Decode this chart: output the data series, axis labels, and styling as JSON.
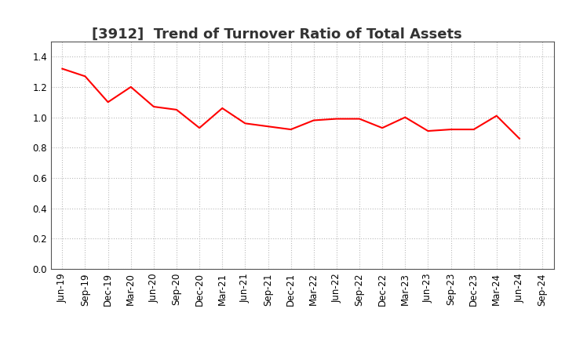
{
  "title": "[3912]  Trend of Turnover Ratio of Total Assets",
  "x_labels": [
    "Jun-19",
    "Sep-19",
    "Dec-19",
    "Mar-20",
    "Jun-20",
    "Sep-20",
    "Dec-20",
    "Mar-21",
    "Jun-21",
    "Sep-21",
    "Dec-21",
    "Mar-22",
    "Jun-22",
    "Sep-22",
    "Dec-22",
    "Mar-23",
    "Jun-23",
    "Sep-23",
    "Dec-23",
    "Mar-24",
    "Jun-24",
    "Sep-24"
  ],
  "y_values": [
    1.32,
    1.27,
    1.1,
    1.2,
    1.07,
    1.05,
    0.93,
    1.06,
    0.96,
    0.94,
    0.92,
    0.98,
    0.99,
    0.99,
    0.93,
    1.0,
    0.91,
    0.92,
    0.92,
    1.01,
    0.86,
    null
  ],
  "line_color": "#FF0000",
  "line_width": 1.5,
  "ylim": [
    0.0,
    1.5
  ],
  "yticks": [
    0.0,
    0.2,
    0.4,
    0.6,
    0.8,
    1.0,
    1.2,
    1.4
  ],
  "grid_color": "#bbbbbb",
  "bg_color": "#ffffff",
  "plot_bg_color": "#ffffff",
  "title_fontsize": 13,
  "tick_fontsize": 8.5
}
